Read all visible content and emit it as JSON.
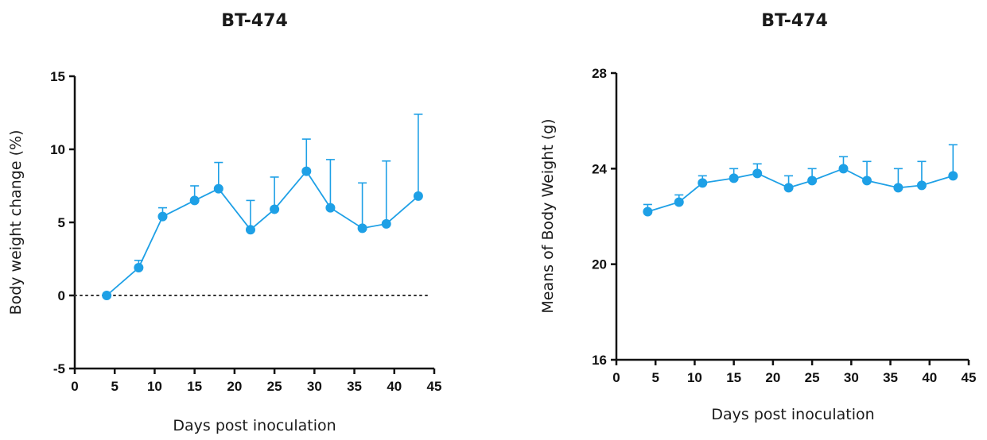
{
  "colors": {
    "series": "#1ea0e6",
    "axis": "#111111"
  },
  "chart_data": [
    {
      "type": "line",
      "title": "BT-474",
      "xlabel": "Days post inoculation",
      "ylabel": "Body weight change (%)",
      "xlim": [
        0,
        45
      ],
      "ylim": [
        -5,
        15
      ],
      "xticks": [
        "0",
        "5",
        "10",
        "15",
        "20",
        "25",
        "30",
        "35",
        "40",
        "45"
      ],
      "yticks": [
        "-5",
        "0",
        "5",
        "10",
        "15"
      ],
      "reference_line": {
        "y": 0,
        "style": "dotted"
      },
      "series": [
        {
          "x": [
            4,
            8,
            11,
            15,
            18,
            22,
            25,
            29,
            32,
            36,
            39,
            43
          ],
          "y": [
            0,
            1.9,
            5.4,
            6.5,
            7.3,
            4.5,
            5.9,
            8.5,
            6.0,
            4.6,
            4.9,
            6.8
          ],
          "error_upper": [
            0,
            2.4,
            6.0,
            7.5,
            9.1,
            6.5,
            8.1,
            10.7,
            9.3,
            7.7,
            9.2,
            12.4
          ]
        }
      ]
    },
    {
      "type": "line",
      "title": "BT-474",
      "xlabel": "Days post inoculation",
      "ylabel": "Means of Body Weight (g)",
      "xlim": [
        0,
        45
      ],
      "ylim": [
        16,
        28
      ],
      "xticks": [
        "0",
        "5",
        "10",
        "15",
        "20",
        "25",
        "30",
        "35",
        "40",
        "45"
      ],
      "yticks": [
        "16",
        "20",
        "24",
        "28"
      ],
      "series": [
        {
          "x": [
            4,
            8,
            11,
            15,
            18,
            22,
            25,
            29,
            32,
            36,
            39,
            43
          ],
          "y": [
            22.2,
            22.6,
            23.4,
            23.6,
            23.8,
            23.2,
            23.5,
            24.0,
            23.5,
            23.2,
            23.3,
            23.7
          ],
          "error_upper": [
            22.5,
            22.9,
            23.7,
            24.0,
            24.2,
            23.7,
            24.0,
            24.5,
            24.3,
            24.0,
            24.3,
            25.0
          ]
        }
      ]
    }
  ]
}
